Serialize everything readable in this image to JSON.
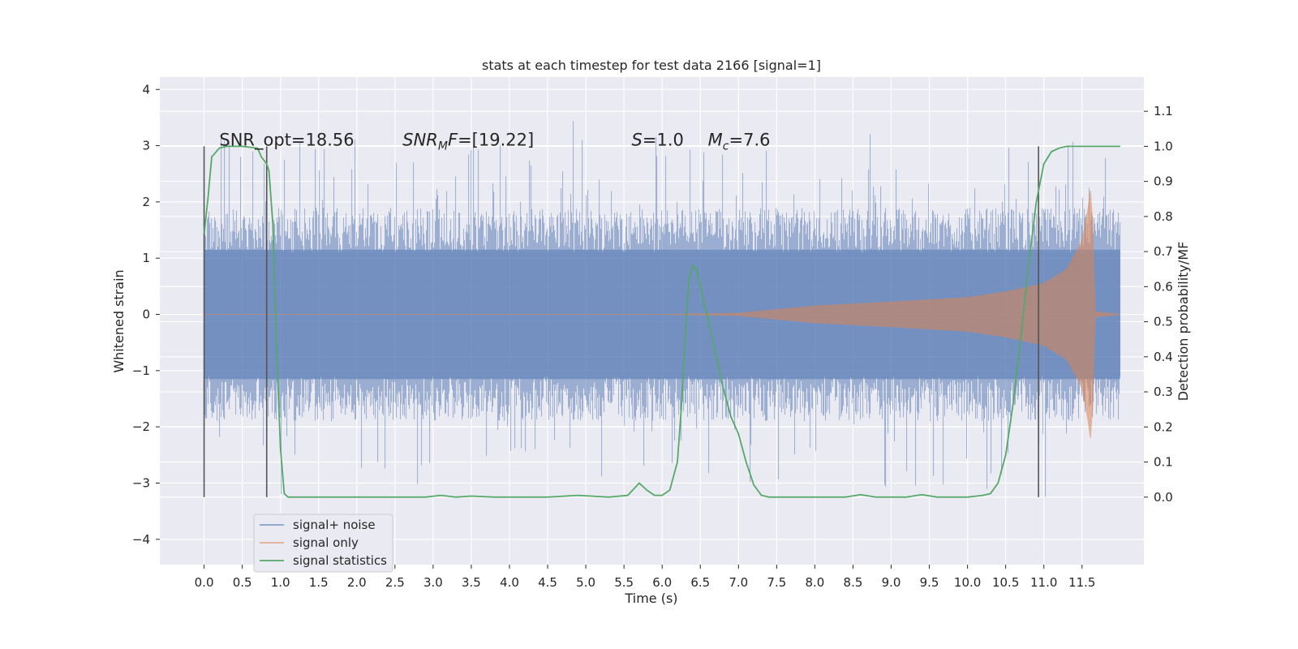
{
  "chart_data": {
    "type": "line",
    "title": "stats at each timestep for test data 2166 [signal=1]",
    "xlabel": "Time (s)",
    "ylabel": "Whitened strain",
    "y2label": "Detection probability/MF",
    "xlim": [
      -0.58,
      12.31
    ],
    "ylim": [
      -4.45,
      4.22
    ],
    "y2lim": [
      -0.1925,
      1.1975
    ],
    "xticks": [
      "0.0",
      "0.5",
      "1.0",
      "1.5",
      "2.0",
      "2.5",
      "3.0",
      "3.5",
      "4.0",
      "4.5",
      "5.0",
      "5.5",
      "6.0",
      "6.5",
      "7.0",
      "7.5",
      "8.0",
      "8.5",
      "9.0",
      "9.5",
      "10.0",
      "10.5",
      "11.0",
      "11.5"
    ],
    "xtick_values": [
      0,
      0.5,
      1,
      1.5,
      2,
      2.5,
      3,
      3.5,
      4,
      4.5,
      5,
      5.5,
      6,
      6.5,
      7,
      7.5,
      8,
      8.5,
      9,
      9.5,
      10,
      10.5,
      11,
      11.5
    ],
    "yticks": [
      "−4",
      "−3",
      "−2",
      "−1",
      "0",
      "1",
      "2",
      "3",
      "4"
    ],
    "ytick_values": [
      -4,
      -3,
      -2,
      -1,
      0,
      1,
      2,
      3,
      4
    ],
    "y2ticks": [
      "0.0",
      "0.1",
      "0.2",
      "0.3",
      "0.4",
      "0.5",
      "0.6",
      "0.7",
      "0.8",
      "0.9",
      "1.0",
      "1.1"
    ],
    "y2tick_values": [
      0,
      0.1,
      0.2,
      0.3,
      0.4,
      0.5,
      0.6,
      0.7,
      0.8,
      0.9,
      1.0,
      1.1
    ],
    "grid": true,
    "legend_position": "lower-left",
    "series": [
      {
        "name": "signal+ noise",
        "color": "#4c72b0",
        "style": "noise",
        "amplitude_core": 1.15,
        "amplitude_max": 3.85,
        "x_range": [
          0,
          12.0
        ]
      },
      {
        "name": "signal only",
        "color": "#dd8452",
        "style": "chirp",
        "x_range": [
          0,
          12.0
        ],
        "envelope": {
          "x": [
            0,
            6.0,
            7.0,
            8.0,
            9.0,
            10.0,
            10.5,
            11.0,
            11.3,
            11.5,
            11.58,
            11.63,
            11.66,
            12.0
          ],
          "y": [
            0,
            0,
            0.02,
            0.15,
            0.22,
            0.3,
            0.4,
            0.55,
            0.8,
            1.3,
            1.9,
            2.4,
            0.05,
            0
          ]
        }
      },
      {
        "name": "signal statistics",
        "color": "#55a868",
        "axis": "right",
        "style": "line",
        "x": [
          0,
          0.05,
          0.1,
          0.2,
          0.3,
          0.5,
          0.7,
          0.75,
          0.82,
          0.85,
          0.9,
          0.95,
          1.0,
          1.05,
          1.1,
          1.3,
          2.0,
          2.5,
          2.9,
          3.1,
          3.3,
          3.5,
          3.8,
          4.5,
          4.9,
          5.3,
          5.55,
          5.7,
          5.8,
          5.9,
          6.0,
          6.1,
          6.2,
          6.25,
          6.3,
          6.35,
          6.4,
          6.45,
          6.5,
          6.55,
          6.6,
          6.65,
          6.7,
          6.8,
          6.9,
          7.0,
          7.1,
          7.2,
          7.3,
          7.4,
          7.5,
          8.0,
          8.4,
          8.6,
          8.8,
          9.0,
          9.2,
          9.4,
          9.6,
          9.8,
          10.0,
          10.2,
          10.3,
          10.4,
          10.5,
          10.6,
          10.7,
          10.8,
          10.9,
          11.0,
          11.1,
          11.2,
          11.3,
          11.5,
          11.9,
          12.0
        ],
        "y": [
          0.75,
          0.85,
          0.97,
          0.995,
          1.0,
          1.0,
          0.995,
          0.97,
          0.95,
          0.93,
          0.78,
          0.42,
          0.14,
          0.01,
          0.0,
          0.0,
          0.0,
          0.0,
          0.0,
          0.005,
          0.0,
          0.003,
          0.0,
          0.0,
          0.005,
          0.0,
          0.005,
          0.04,
          0.02,
          0.005,
          0.005,
          0.02,
          0.1,
          0.25,
          0.45,
          0.62,
          0.66,
          0.65,
          0.6,
          0.55,
          0.51,
          0.46,
          0.41,
          0.31,
          0.23,
          0.18,
          0.1,
          0.035,
          0.005,
          0.0,
          0.0,
          0.0,
          0.0,
          0.007,
          0.0,
          0.0,
          0.0,
          0.007,
          0.0,
          0.0,
          0.0,
          0.005,
          0.01,
          0.04,
          0.12,
          0.27,
          0.46,
          0.66,
          0.84,
          0.95,
          0.985,
          0.995,
          1.0,
          1.0,
          1.0,
          1.0
        ]
      }
    ],
    "vlines": [
      0,
      0.82,
      10.93
    ],
    "annotations": [
      {
        "text": "SNR_opt=18.56",
        "x": 0.2,
        "y": 3.0
      },
      {
        "text": "SNR_MF=[19.22]",
        "x": 2.6,
        "y": 3.0
      },
      {
        "text": "S=1.0",
        "x": 5.6,
        "y": 3.0
      },
      {
        "text": "M_c=7.6",
        "x": 6.6,
        "y": 3.0
      }
    ]
  }
}
